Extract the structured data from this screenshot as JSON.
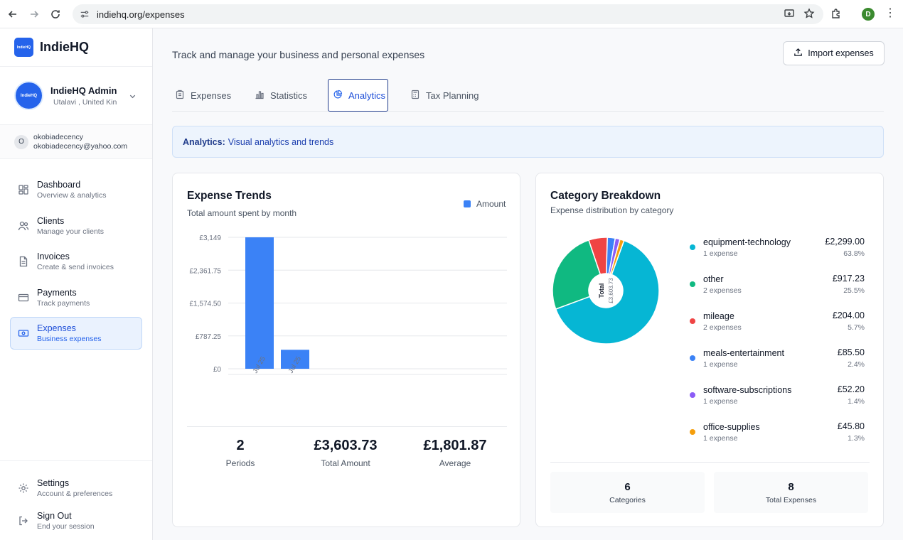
{
  "browser": {
    "url": "indiehq.org/expenses",
    "profile_initial": "D"
  },
  "sidebar": {
    "brand_logo_text": "IndieHQ",
    "brand_name": "IndieHQ",
    "account": {
      "avatar_text": "IndieHQ",
      "name": "IndieHQ Admin",
      "location": "Utalavi , United Kin"
    },
    "user": {
      "initial": "O",
      "username": "okobiadecency",
      "email": "okobiadecency@yahoo.com"
    },
    "items": [
      {
        "label": "Dashboard",
        "sub": "Overview & analytics",
        "icon": "dashboard-icon"
      },
      {
        "label": "Clients",
        "sub": "Manage your clients",
        "icon": "users-icon"
      },
      {
        "label": "Invoices",
        "sub": "Create & send invoices",
        "icon": "document-icon"
      },
      {
        "label": "Payments",
        "sub": "Track payments",
        "icon": "credit-card-icon"
      },
      {
        "label": "Expenses",
        "sub": "Business expenses",
        "icon": "banknote-icon",
        "active": true
      }
    ],
    "bottom": [
      {
        "label": "Settings",
        "sub": "Account & preferences",
        "icon": "gear-icon"
      },
      {
        "label": "Sign Out",
        "sub": "End your session",
        "icon": "logout-icon"
      }
    ]
  },
  "header": {
    "subtitle": "Track and manage your business and personal expenses",
    "import_label": "Import expenses"
  },
  "tabs": [
    {
      "label": "Expenses",
      "icon": "clipboard-icon"
    },
    {
      "label": "Statistics",
      "icon": "bar-chart-icon"
    },
    {
      "label": "Analytics",
      "icon": "pie-chart-icon",
      "active": true
    },
    {
      "label": "Tax Planning",
      "icon": "calculator-icon"
    }
  ],
  "banner": {
    "bold": "Analytics:",
    "text": "Visual analytics and trends"
  },
  "trends": {
    "title": "Expense Trends",
    "subtitle": "Total amount spent by month",
    "legend": "Amount",
    "stats": [
      {
        "value": "2",
        "label": "Periods"
      },
      {
        "value": "£3,603.73",
        "label": "Total Amount"
      },
      {
        "value": "£1,801.87",
        "label": "Average"
      }
    ]
  },
  "breakdown": {
    "title": "Category Breakdown",
    "subtitle": "Expense distribution by category",
    "center_label": "Total",
    "center_value": "£3,603.73",
    "categories": [
      {
        "name": "equipment-technology",
        "count": "1 expense",
        "amount": "£2,299.00",
        "pct": "63.8%",
        "color": "#06b6d4"
      },
      {
        "name": "other",
        "count": "2 expenses",
        "amount": "£917.23",
        "pct": "25.5%",
        "color": "#10b981"
      },
      {
        "name": "mileage",
        "count": "2 expenses",
        "amount": "£204.00",
        "pct": "5.7%",
        "color": "#ef4444"
      },
      {
        "name": "meals-entertainment",
        "count": "1 expense",
        "amount": "£85.50",
        "pct": "2.4%",
        "color": "#3b82f6"
      },
      {
        "name": "software-subscriptions",
        "count": "1 expense",
        "amount": "£52.20",
        "pct": "1.4%",
        "color": "#8b5cf6"
      },
      {
        "name": "office-supplies",
        "count": "1 expense",
        "amount": "£45.80",
        "pct": "1.3%",
        "color": "#f59e0b"
      }
    ],
    "stats": [
      {
        "value": "6",
        "label": "Categories"
      },
      {
        "value": "8",
        "label": "Total Expenses"
      }
    ]
  },
  "chart_data": [
    {
      "type": "bar",
      "title": "Expense Trends",
      "subtitle": "Total amount spent by month",
      "categories": [
        "Jul 25",
        "Jul 25"
      ],
      "series": [
        {
          "name": "Amount",
          "values": [
            3149,
            454.73
          ],
          "color": "#3b82f6"
        }
      ],
      "yticks": [
        "£0",
        "£787.25",
        "£1,574.50",
        "£2,361.75",
        "£3,149"
      ],
      "ylim": [
        0,
        3149
      ],
      "grid": true,
      "legend": "top-right"
    },
    {
      "type": "pie",
      "title": "Category Breakdown",
      "subtitle": "Expense distribution by category",
      "labels": [
        "equipment-technology",
        "other",
        "mileage",
        "meals-entertainment",
        "software-subscriptions",
        "office-supplies"
      ],
      "values": [
        2299.0,
        917.23,
        204.0,
        85.5,
        52.2,
        45.8
      ],
      "colors": [
        "#06b6d4",
        "#10b981",
        "#ef4444",
        "#3b82f6",
        "#8b5cf6",
        "#f59e0b"
      ]
    }
  ]
}
